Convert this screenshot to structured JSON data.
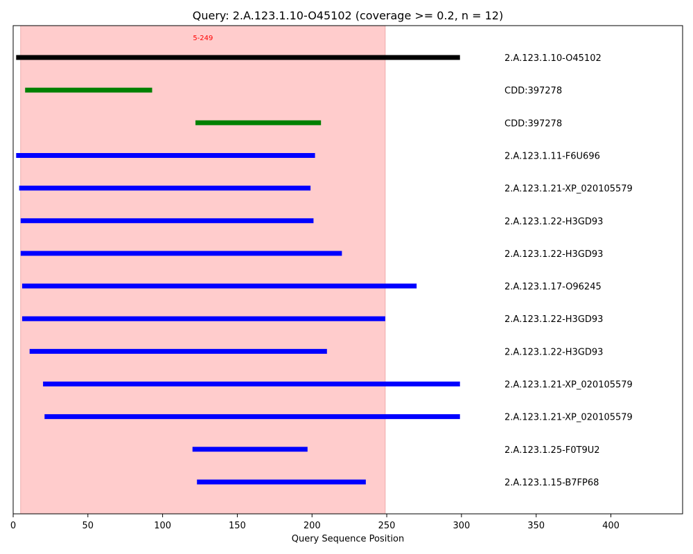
{
  "chart_data": {
    "type": "segment",
    "title": "Query: 2.A.123.1.10-O45102 (coverage >= 0.2, n = 12)",
    "xlabel": "Query Sequence Position",
    "ylabel": "",
    "xlim": [
      0,
      448
    ],
    "xticks": [
      0,
      50,
      100,
      150,
      200,
      250,
      300,
      350,
      400
    ],
    "grid": false,
    "highlight": {
      "start": 5,
      "end": 249,
      "label": "5-249",
      "color": "#ffcccc",
      "label_color": "#ff0000"
    },
    "series": [
      {
        "label": "2.A.123.1.10-O45102",
        "start": 2,
        "end": 299,
        "color": "#000000"
      },
      {
        "label": "CDD:397278",
        "start": 8,
        "end": 93,
        "color": "#008000"
      },
      {
        "label": "CDD:397278",
        "start": 122,
        "end": 206,
        "color": "#008000"
      },
      {
        "label": "2.A.123.1.11-F6U696",
        "start": 2,
        "end": 202,
        "color": "#0000ff"
      },
      {
        "label": "2.A.123.1.21-XP_020105579",
        "start": 4,
        "end": 199,
        "color": "#0000ff"
      },
      {
        "label": "2.A.123.1.22-H3GD93",
        "start": 5,
        "end": 201,
        "color": "#0000ff"
      },
      {
        "label": "2.A.123.1.22-H3GD93",
        "start": 5,
        "end": 220,
        "color": "#0000ff"
      },
      {
        "label": "2.A.123.1.17-O96245",
        "start": 6,
        "end": 270,
        "color": "#0000ff"
      },
      {
        "label": "2.A.123.1.22-H3GD93",
        "start": 6,
        "end": 249,
        "color": "#0000ff"
      },
      {
        "label": "2.A.123.1.22-H3GD93",
        "start": 11,
        "end": 210,
        "color": "#0000ff"
      },
      {
        "label": "2.A.123.1.21-XP_020105579",
        "start": 20,
        "end": 299,
        "color": "#0000ff"
      },
      {
        "label": "2.A.123.1.21-XP_020105579",
        "start": 21,
        "end": 299,
        "color": "#0000ff"
      },
      {
        "label": "2.A.123.1.25-F0T9U2",
        "start": 120,
        "end": 197,
        "color": "#0000ff"
      },
      {
        "label": "2.A.123.1.15-B7FP68",
        "start": 123,
        "end": 236,
        "color": "#0000ff"
      }
    ]
  }
}
